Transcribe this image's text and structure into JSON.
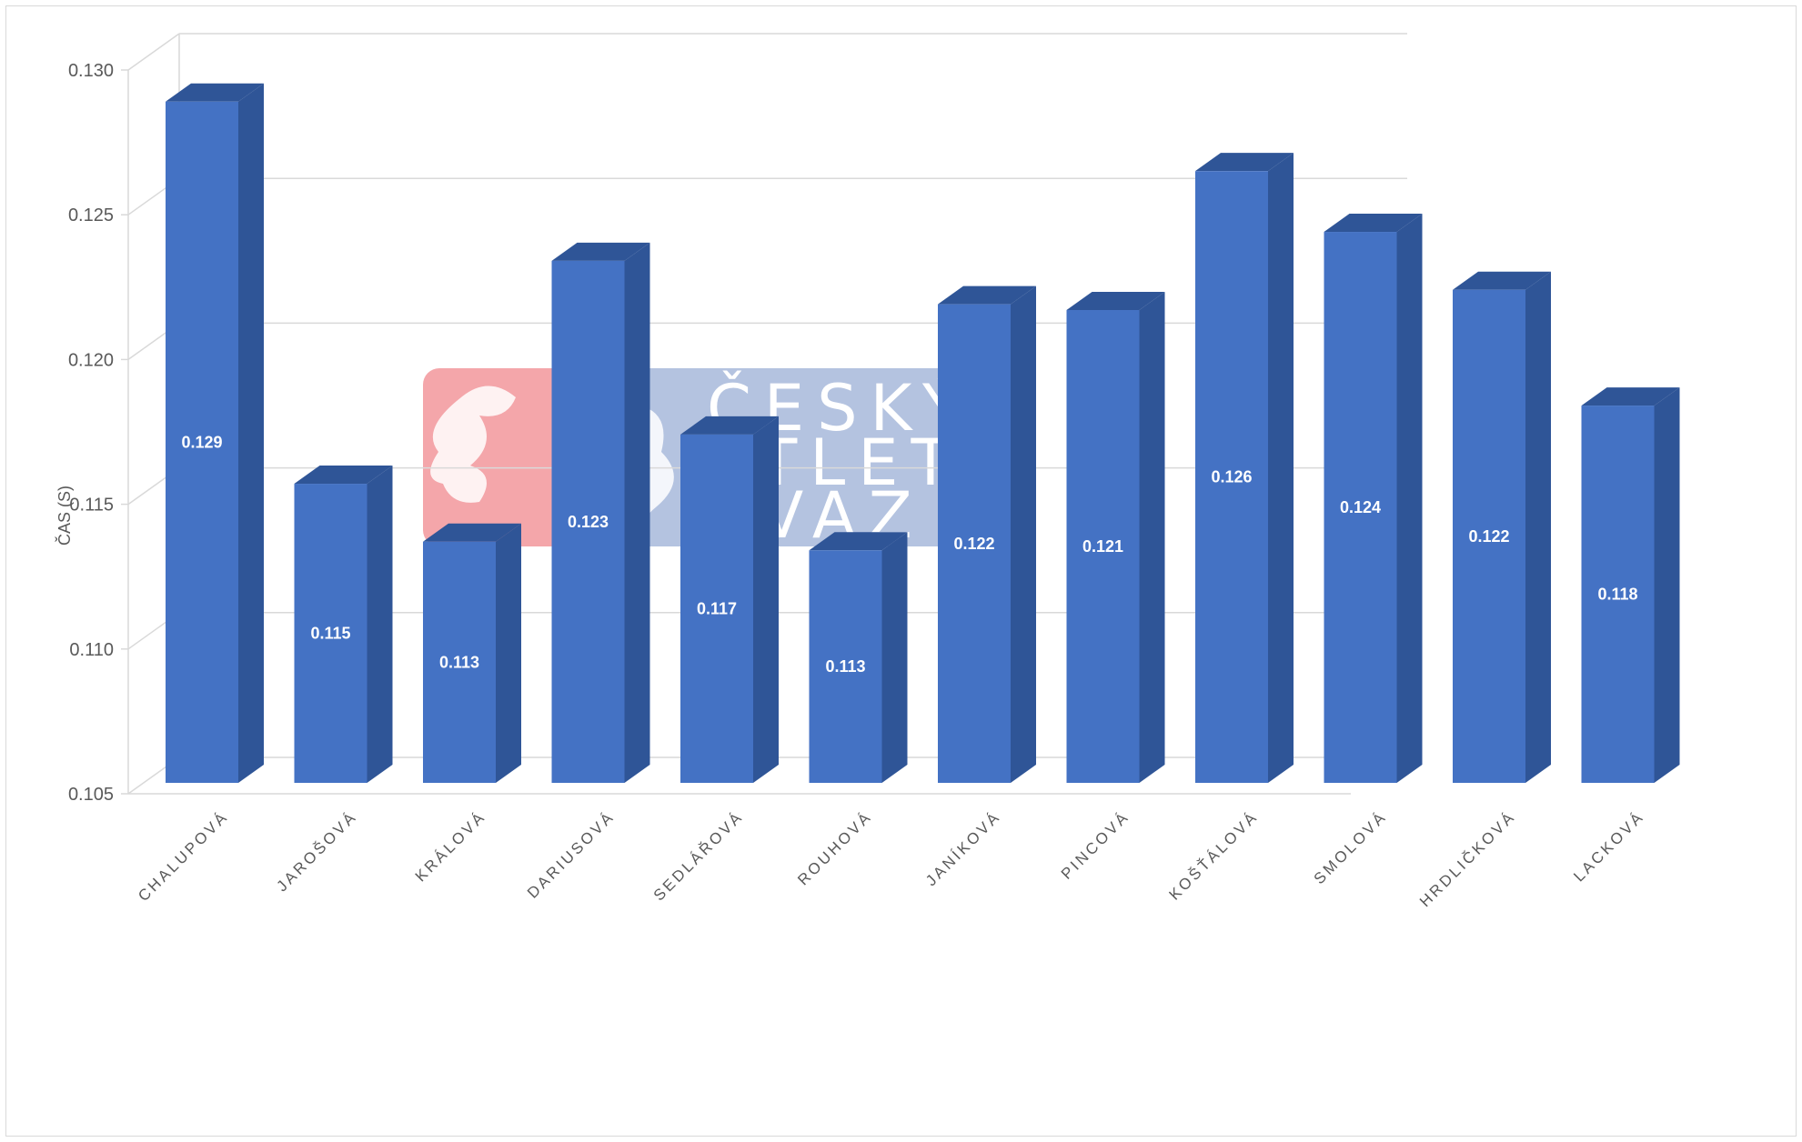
{
  "chart_data": {
    "type": "bar",
    "style": "3d-column",
    "title": "",
    "xlabel": "",
    "ylabel": "ČAS (S)",
    "ylim": [
      0.105,
      0.13
    ],
    "yticks": [
      "0.130",
      "0.125",
      "0.120",
      "0.115",
      "0.110",
      "0.105"
    ],
    "grid": true,
    "legend": "none",
    "categories": [
      "CHALUPOVÁ",
      "JAROŠOVÁ",
      "KRÁLOVÁ",
      "DARIUSOVÁ",
      "SEDLÁŘOVÁ",
      "ROUHOVÁ",
      "JANÍKOVÁ",
      "PINCOVÁ",
      "KOŠŤÁLOVÁ",
      "SMOLOVÁ",
      "HRDLIČKOVÁ",
      "LACKOVÁ"
    ],
    "values": [
      0.1285,
      0.1153,
      0.1133,
      0.123,
      0.117,
      0.113,
      0.1215,
      0.1213,
      0.1261,
      0.124,
      0.122,
      0.118
    ],
    "data_labels": [
      "0.129",
      "0.115",
      "0.113",
      "0.123",
      "0.117",
      "0.113",
      "0.122",
      "0.121",
      "0.126",
      "0.124",
      "0.122",
      "0.118"
    ],
    "colors": {
      "front": "#4472c4",
      "side": "#2f5597",
      "top": "#2f5597",
      "grid": "#d9d9d9"
    }
  },
  "watermark": {
    "icon": "lion-logo-icon",
    "lines": [
      "ČESKÝ",
      "ATLETICKÝ",
      "SVAZ"
    ],
    "colors": {
      "left": "#f4a6aa",
      "right": "#b4c3e0"
    }
  }
}
